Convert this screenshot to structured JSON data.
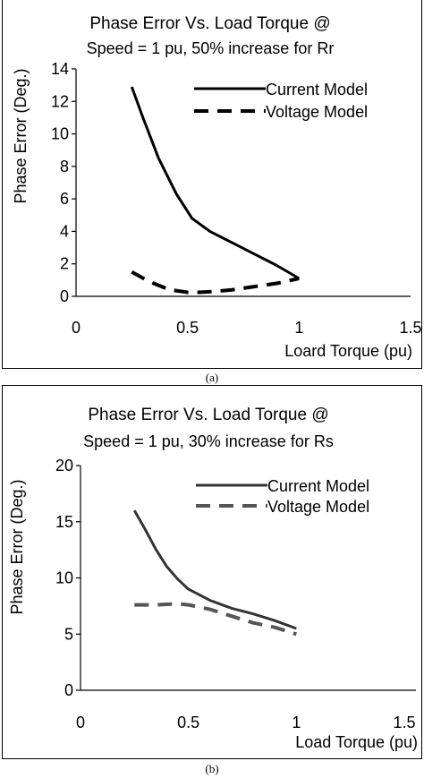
{
  "chart_data": [
    {
      "type": "line",
      "title_line1": "Phase Error Vs. Load Torque @",
      "title_line2": "Speed = 1 pu, 50% increase for Rr",
      "xlabel": "Loard Torque (pu)",
      "ylabel": "Phase Error (Deg.)",
      "xlim": [
        0,
        1.5
      ],
      "ylim": [
        0,
        14
      ],
      "xticks": [
        0,
        0.5,
        1,
        1.5
      ],
      "xtick_labels": [
        "0",
        "0.5",
        "1",
        "1.5"
      ],
      "yticks": [
        0,
        2,
        4,
        6,
        8,
        10,
        12,
        14
      ],
      "ytick_labels": [
        "0",
        "2",
        "4",
        "6",
        "8",
        "10",
        "12",
        "14"
      ],
      "grid": false,
      "legend_position": "top-right",
      "caption": "(a)",
      "series": [
        {
          "name": "Current Model",
          "style": "solid",
          "color": "#000000",
          "x": [
            0.25,
            0.3,
            0.37,
            0.45,
            0.52,
            0.6,
            0.7,
            0.8,
            0.9,
            1.0
          ],
          "y": [
            12.9,
            11.0,
            8.5,
            6.3,
            4.8,
            4.0,
            3.3,
            2.6,
            1.9,
            1.1
          ]
        },
        {
          "name": "Voltage Model",
          "style": "dashed",
          "color": "#000000",
          "x": [
            0.25,
            0.33,
            0.42,
            0.5,
            0.55,
            0.62,
            0.7,
            0.8,
            0.9,
            1.0
          ],
          "y": [
            1.5,
            0.9,
            0.4,
            0.25,
            0.25,
            0.3,
            0.4,
            0.6,
            0.8,
            1.1
          ]
        }
      ]
    },
    {
      "type": "line",
      "title_line1": "Phase Error Vs. Load Torque @",
      "title_line2": "Speed = 1 pu, 30% increase for Rs",
      "xlabel": "Load Torque (pu)",
      "ylabel": "Phase Error (Deg.)",
      "xlim": [
        0,
        1.5
      ],
      "ylim": [
        0,
        20
      ],
      "xticks": [
        0,
        0.5,
        1,
        1.5
      ],
      "xtick_labels": [
        "0",
        "0.5",
        "1",
        "1.5"
      ],
      "yticks": [
        0,
        5,
        10,
        15,
        20
      ],
      "ytick_labels": [
        "0",
        "5",
        "10",
        "15",
        "20"
      ],
      "grid": false,
      "legend_position": "top-right",
      "caption": "(b)",
      "series": [
        {
          "name": "Current Model",
          "style": "solid",
          "color": "#333333",
          "x": [
            0.25,
            0.3,
            0.35,
            0.4,
            0.45,
            0.5,
            0.6,
            0.7,
            0.8,
            0.9,
            1.0
          ],
          "y": [
            16.0,
            14.3,
            12.5,
            11.0,
            9.9,
            9.0,
            8.0,
            7.3,
            6.8,
            6.2,
            5.5
          ]
        },
        {
          "name": "Voltage Model",
          "style": "dashed",
          "color": "#555555",
          "x": [
            0.25,
            0.35,
            0.45,
            0.5,
            0.6,
            0.7,
            0.8,
            0.9,
            1.0
          ],
          "y": [
            7.6,
            7.6,
            7.7,
            7.6,
            7.2,
            6.6,
            6.0,
            5.6,
            5.0
          ]
        }
      ]
    }
  ]
}
